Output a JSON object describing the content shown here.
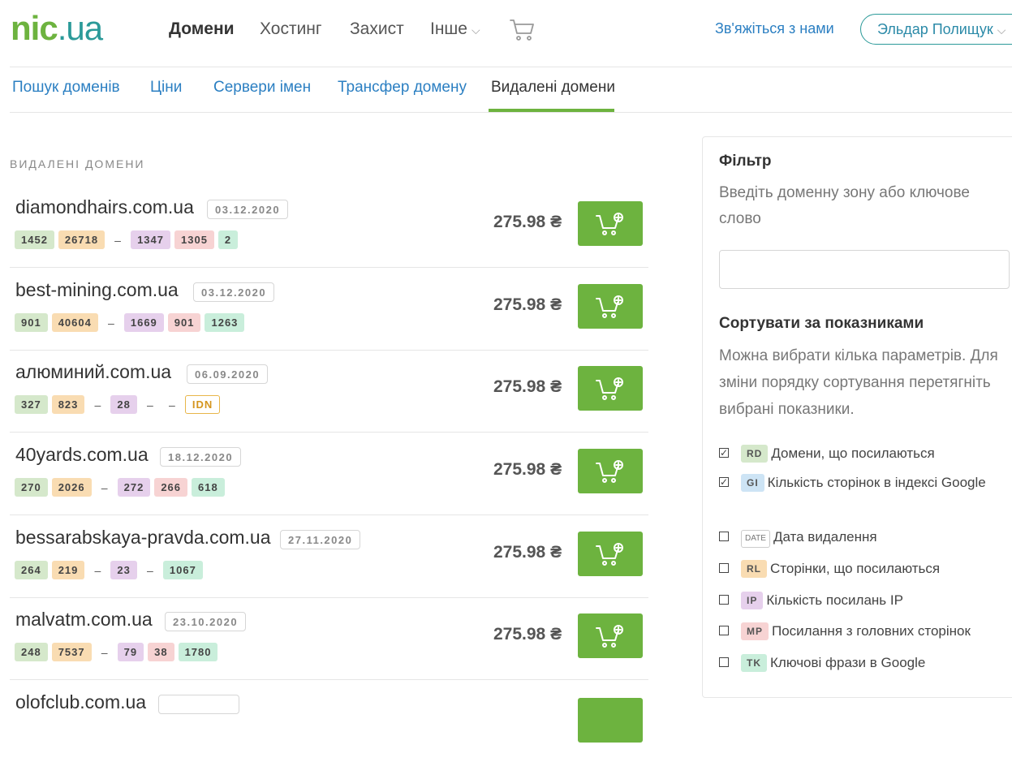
{
  "header": {
    "logo": {
      "part1": "nic",
      "part2": ".ua"
    },
    "nav": [
      {
        "label": "Домени",
        "active": true
      },
      {
        "label": "Хостинг",
        "active": false
      },
      {
        "label": "Захист",
        "active": false
      },
      {
        "label": "Інше",
        "active": false,
        "dropdown": true
      }
    ],
    "cart_icon": "cart-icon",
    "contact": "Зв'яжіться з нами",
    "user": "Эльдар Полищук"
  },
  "subnav": [
    {
      "label": "Пошук доменів",
      "active": false
    },
    {
      "label": "Ціни",
      "active": false
    },
    {
      "label": "Сервери імен",
      "active": false
    },
    {
      "label": "Трансфер домену",
      "active": false
    },
    {
      "label": "Видалені домени",
      "active": true
    }
  ],
  "section_title": "ВИДАЛЕНІ ДОМЕНИ",
  "currency": "₴",
  "domains": [
    {
      "name": "diamondhairs.com.ua",
      "date": "03.12.2020",
      "price": "275.98",
      "rd": "1452",
      "rl": "26718",
      "date_metric": "–",
      "ip": "1347",
      "mp": "1305",
      "tk": "2"
    },
    {
      "name": "best-mining.com.ua",
      "date": "03.12.2020",
      "price": "275.98",
      "rd": "901",
      "rl": "40604",
      "date_metric": "–",
      "ip": "1669",
      "mp": "901",
      "tk": "1263"
    },
    {
      "name": "алюминий.com.ua",
      "date": "06.09.2020",
      "price": "275.98",
      "rd": "327",
      "rl": "823",
      "date_metric": "–",
      "ip": "28",
      "mp": "–",
      "tk": "–",
      "tag": "IDN"
    },
    {
      "name": "40yards.com.ua",
      "date": "18.12.2020",
      "price": "275.98",
      "rd": "270",
      "rl": "2026",
      "date_metric": "–",
      "ip": "272",
      "mp": "266",
      "tk": "618"
    },
    {
      "name": "bessarabskaya-pravda.com.ua",
      "date": "27.11.2020",
      "price": "275.98",
      "rd": "264",
      "rl": "219",
      "date_metric": "–",
      "ip": "23",
      "mp": "–",
      "tk": "1067"
    },
    {
      "name": "malvatm.com.ua",
      "date": "23.10.2020",
      "price": "275.98",
      "rd": "248",
      "rl": "7537",
      "date_metric": "–",
      "ip": "79",
      "mp": "38",
      "tk": "1780"
    },
    {
      "name": "olofclub.com.ua",
      "date": "",
      "price": "",
      "rd": "",
      "rl": "",
      "date_metric": "",
      "ip": "",
      "mp": "",
      "tk": ""
    }
  ],
  "filter": {
    "title": "Фільтр",
    "description": "Введіть доменну зону або ключове слово",
    "input_value": ""
  },
  "sort": {
    "title": "Сортувати за показниками",
    "description": "Можна вибрати кілька параметрів. Для зміни порядку сортування перетягніть вибрані показники.",
    "options": [
      {
        "badge": "RD",
        "label": "Домени, що посилаються",
        "checked": true
      },
      {
        "badge": "GI",
        "label": "Кількість сторінок в індексі Google",
        "checked": true
      },
      {
        "badge": "DATE",
        "label": "Дата видалення",
        "checked": false
      },
      {
        "badge": "RL",
        "label": "Сторінки, що посилаються",
        "checked": false
      },
      {
        "badge": "IP",
        "label": "Кількість посилань IP",
        "checked": false
      },
      {
        "badge": "MP",
        "label": "Посилання з головних сторінок",
        "checked": false
      },
      {
        "badge": "TK",
        "label": "Ключові фрази в Google",
        "checked": false
      }
    ]
  },
  "colors": {
    "brand_green": "#6db33f",
    "brand_teal": "#2b9a99",
    "link_blue": "#2b7fc2",
    "idn_orange": "#e8b64a"
  }
}
